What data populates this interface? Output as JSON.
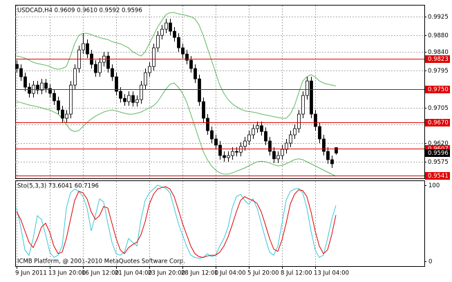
{
  "chart_data": [
    {
      "type": "candlestick",
      "title": "USDCAD,H4 0.9609 0.9610 0.9592 0.9596",
      "categories": [
        "9 Jun 2011",
        null,
        null,
        null,
        null,
        null,
        null,
        null,
        "13 Jun 20:00",
        null,
        null,
        null,
        null,
        null,
        null,
        null,
        "16 Jun 12:00",
        null,
        null,
        null,
        null,
        null,
        null,
        null,
        "21 Jun 04:00",
        null,
        null,
        null,
        null,
        null,
        null,
        null,
        "23 Jun 20:00",
        null,
        null,
        null,
        null,
        null,
        null,
        null,
        "28 Jun 12:00",
        null,
        null,
        null,
        null,
        null,
        null,
        null,
        "1 Jul 04:00",
        null,
        null,
        null,
        null,
        null,
        null,
        null,
        "5 Jul 20:00",
        null,
        null,
        null,
        null,
        null,
        null,
        null,
        "8 Jul 12:00",
        null,
        null,
        null,
        null,
        null,
        null,
        null,
        "13 Jul 04:00",
        null,
        null,
        null,
        null,
        null
      ],
      "open": [
        0.981,
        0.98,
        0.978,
        0.9755,
        0.974,
        0.976,
        0.9748,
        0.9765,
        0.9752,
        0.974,
        0.9722,
        0.97,
        0.968,
        0.969,
        0.976,
        0.98,
        0.9845,
        0.986,
        0.9835,
        0.981,
        0.979,
        0.9815,
        0.983,
        0.98,
        0.978,
        0.9745,
        0.9728,
        0.972,
        0.9735,
        0.9718,
        0.9725,
        0.976,
        0.979,
        0.9805,
        0.985,
        0.988,
        0.9895,
        0.991,
        0.989,
        0.9875,
        0.985,
        0.9835,
        0.982,
        0.98,
        0.9775,
        0.972,
        0.968,
        0.965,
        0.963,
        0.9615,
        0.959,
        0.9585,
        0.959,
        0.96,
        0.9598,
        0.9612,
        0.9625,
        0.964,
        0.9655,
        0.9662,
        0.9648,
        0.9625,
        0.96,
        0.9582,
        0.959,
        0.9605,
        0.962,
        0.964,
        0.9655,
        0.969,
        0.9735,
        0.977,
        0.969,
        0.966,
        0.963,
        0.96,
        0.958,
        0.9609
      ],
      "high": [
        0.982,
        0.981,
        0.979,
        0.9765,
        0.977,
        0.977,
        0.9775,
        0.9775,
        0.9762,
        0.975,
        0.9732,
        0.971,
        0.97,
        0.977,
        0.981,
        0.9855,
        0.9885,
        0.987,
        0.9845,
        0.982,
        0.9825,
        0.984,
        0.984,
        0.981,
        0.979,
        0.9755,
        0.9738,
        0.9745,
        0.9745,
        0.9735,
        0.977,
        0.98,
        0.9815,
        0.986,
        0.989,
        0.9905,
        0.992,
        0.992,
        0.99,
        0.9885,
        0.986,
        0.9845,
        0.983,
        0.981,
        0.9785,
        0.973,
        0.969,
        0.966,
        0.964,
        0.9625,
        0.96,
        0.96,
        0.961,
        0.961,
        0.9622,
        0.9635,
        0.965,
        0.9665,
        0.9672,
        0.9672,
        0.9658,
        0.9635,
        0.961,
        0.96,
        0.9615,
        0.963,
        0.965,
        0.9665,
        0.97,
        0.9745,
        0.978,
        0.978,
        0.97,
        0.967,
        0.964,
        0.961,
        0.959,
        0.961
      ],
      "low": [
        0.979,
        0.977,
        0.9745,
        0.973,
        0.973,
        0.9738,
        0.9738,
        0.9742,
        0.973,
        0.9712,
        0.969,
        0.967,
        0.967,
        0.968,
        0.975,
        0.979,
        0.9835,
        0.9825,
        0.98,
        0.978,
        0.978,
        0.9805,
        0.979,
        0.977,
        0.9735,
        0.9718,
        0.971,
        0.971,
        0.9708,
        0.9708,
        0.9715,
        0.975,
        0.978,
        0.9795,
        0.984,
        0.987,
        0.9885,
        0.988,
        0.9865,
        0.984,
        0.9825,
        0.981,
        0.979,
        0.9765,
        0.971,
        0.967,
        0.964,
        0.962,
        0.9605,
        0.958,
        0.9575,
        0.9575,
        0.958,
        0.9588,
        0.9588,
        0.9602,
        0.9615,
        0.963,
        0.9645,
        0.9638,
        0.9615,
        0.959,
        0.9572,
        0.9572,
        0.958,
        0.9595,
        0.961,
        0.963,
        0.9645,
        0.968,
        0.9725,
        0.968,
        0.965,
        0.962,
        0.959,
        0.957,
        0.956,
        0.9592
      ],
      "close": [
        0.98,
        0.978,
        0.9755,
        0.974,
        0.976,
        0.9748,
        0.9765,
        0.9752,
        0.974,
        0.9722,
        0.97,
        0.968,
        0.969,
        0.976,
        0.98,
        0.9845,
        0.986,
        0.9835,
        0.981,
        0.979,
        0.9815,
        0.983,
        0.98,
        0.978,
        0.9745,
        0.9728,
        0.972,
        0.9735,
        0.9718,
        0.9725,
        0.976,
        0.979,
        0.9805,
        0.985,
        0.988,
        0.9895,
        0.991,
        0.989,
        0.9875,
        0.985,
        0.9835,
        0.982,
        0.98,
        0.9775,
        0.972,
        0.968,
        0.965,
        0.963,
        0.9615,
        0.959,
        0.9585,
        0.959,
        0.96,
        0.9598,
        0.9612,
        0.9625,
        0.964,
        0.9655,
        0.9662,
        0.9648,
        0.9625,
        0.96,
        0.9582,
        0.959,
        0.9605,
        0.962,
        0.964,
        0.9655,
        0.969,
        0.9735,
        0.977,
        0.969,
        0.966,
        0.963,
        0.96,
        0.958,
        0.957,
        0.9596
      ],
      "upper_band": [
        0.983,
        0.9828,
        0.9825,
        0.982,
        0.9815,
        0.9812,
        0.981,
        0.9808,
        0.9805,
        0.98,
        0.9798,
        0.98,
        0.9805,
        0.983,
        0.986,
        0.988,
        0.9885,
        0.9885,
        0.9882,
        0.9878,
        0.9875,
        0.9872,
        0.987,
        0.9865,
        0.9862,
        0.986,
        0.9855,
        0.985,
        0.984,
        0.9835,
        0.983,
        0.984,
        0.986,
        0.988,
        0.99,
        0.9915,
        0.993,
        0.9935,
        0.9935,
        0.9932,
        0.993,
        0.9928,
        0.9925,
        0.992,
        0.9905,
        0.988,
        0.985,
        0.982,
        0.979,
        0.976,
        0.974,
        0.9725,
        0.9715,
        0.9708,
        0.9702,
        0.9698,
        0.9696,
        0.9695,
        0.9693,
        0.969,
        0.9688,
        0.9686,
        0.9684,
        0.9682,
        0.968,
        0.968,
        0.969,
        0.971,
        0.974,
        0.977,
        0.978,
        0.9785,
        0.978,
        0.977,
        0.9765,
        0.9762,
        0.976,
        0.9758
      ],
      "lower_band": [
        0.972,
        0.9718,
        0.9715,
        0.9712,
        0.971,
        0.9708,
        0.9705,
        0.9702,
        0.97,
        0.9695,
        0.969,
        0.968,
        0.9665,
        0.9652,
        0.9648,
        0.965,
        0.966,
        0.967,
        0.9678,
        0.9685,
        0.969,
        0.9695,
        0.9698,
        0.97,
        0.9698,
        0.9695,
        0.9692,
        0.969,
        0.969,
        0.9692,
        0.9695,
        0.97,
        0.9705,
        0.971,
        0.972,
        0.9735,
        0.975,
        0.9762,
        0.9765,
        0.9755,
        0.974,
        0.972,
        0.969,
        0.966,
        0.963,
        0.96,
        0.958,
        0.9565,
        0.9555,
        0.9548,
        0.9545,
        0.9545,
        0.9548,
        0.9552,
        0.9556,
        0.956,
        0.9565,
        0.957,
        0.9575,
        0.9576,
        0.9575,
        0.9572,
        0.9568,
        0.9565,
        0.9566,
        0.957,
        0.9575,
        0.958,
        0.9582,
        0.958,
        0.9575,
        0.957,
        0.9565,
        0.956,
        0.9555,
        0.955,
        0.9545,
        0.954
      ],
      "band_color": "#5fb85f",
      "up_color": "#ffffff",
      "down_color": "#000000",
      "levels": [
        0.9823,
        {
          "value": 0.975,
          "label": "0.9750"
        },
        {
          "value": 0.967,
          "label": "0.9670"
        },
        0.9607,
        0.9541
      ],
      "level_color": "#e00000",
      "ylim": [
        0.9535,
        0.9952
      ],
      "yticks": [
        0.9925,
        {
          "value": 0.988,
          "label": "0.9880"
        },
        {
          "value": 0.984,
          "label": "0.9840"
        },
        0.9795,
        {
          "value": 0.975,
          "label": "0.9750"
        },
        0.9705,
        0.9665,
        {
          "value": 0.962,
          "label": "0.9620"
        },
        0.9575
      ],
      "grid": true
    },
    {
      "type": "line",
      "title": "Sto(5,3,3) 73.6041 60.7196",
      "annotation": "ICMB Platform, @ 2001-2010 MetaQuotes Software Corp.",
      "series": [
        {
          "color": "#3cc8d8",
          "values": [
            70,
            45,
            15,
            8,
            30,
            60,
            55,
            35,
            12,
            5,
            8,
            20,
            70,
            90,
            95,
            92,
            85,
            70,
            40,
            60,
            82,
            78,
            50,
            25,
            10,
            8,
            12,
            30,
            25,
            20,
            55,
            80,
            90,
            95,
            100,
            98,
            96,
            90,
            70,
            50,
            35,
            20,
            8,
            5,
            4,
            5,
            10,
            6,
            8,
            20,
            30,
            45,
            70,
            85,
            88,
            80,
            75,
            82,
            70,
            50,
            30,
            12,
            8,
            20,
            50,
            80,
            92,
            95,
            96,
            90,
            70,
            40,
            15,
            5,
            8,
            30,
            55,
            73.6041
          ]
        },
        {
          "color": "#e00000",
          "values": [
            65,
            55,
            40,
            25,
            18,
            30,
            45,
            50,
            38,
            20,
            10,
            12,
            30,
            55,
            80,
            92,
            90,
            82,
            65,
            55,
            60,
            72,
            70,
            50,
            30,
            15,
            10,
            18,
            22,
            25,
            35,
            52,
            75,
            88,
            95,
            97,
            98,
            95,
            85,
            68,
            50,
            35,
            20,
            10,
            6,
            5,
            7,
            8,
            8,
            12,
            20,
            32,
            48,
            65,
            80,
            85,
            82,
            80,
            76,
            65,
            48,
            30,
            16,
            13,
            28,
            50,
            75,
            88,
            94,
            93,
            85,
            65,
            40,
            20,
            10,
            15,
            35,
            60.7196
          ]
        }
      ],
      "ylim": [
        -6.4,
        105.5
      ],
      "yticks": [
        0,
        100
      ]
    }
  ]
}
